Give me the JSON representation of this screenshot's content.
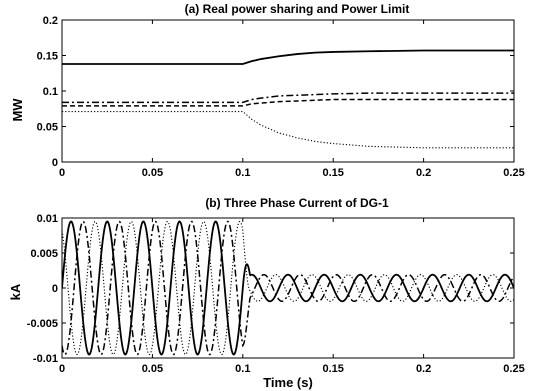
{
  "chart_data": [
    {
      "type": "line",
      "title": "(a) Real power sharing and Power Limit",
      "xlabel": "",
      "ylabel": "MW",
      "xlim": [
        0,
        0.25
      ],
      "ylim": [
        0,
        0.2
      ],
      "xticks": [
        0,
        0.05,
        0.1,
        0.15,
        0.2,
        0.25
      ],
      "xtick_labels": [
        "0",
        "0.05",
        "0.1",
        "0.15",
        "0.2",
        "0.25"
      ],
      "yticks": [
        0,
        0.05,
        0.1,
        0.15,
        0.2
      ],
      "ytick_labels": [
        "0",
        "0.05",
        "0.1",
        "0.15",
        "0.2"
      ],
      "grid": false,
      "series": [
        {
          "style": "solid",
          "x": [
            0,
            0.1,
            0.105,
            0.11,
            0.12,
            0.13,
            0.14,
            0.15,
            0.17,
            0.2,
            0.25
          ],
          "y": [
            0.138,
            0.138,
            0.142,
            0.145,
            0.149,
            0.152,
            0.154,
            0.155,
            0.156,
            0.157,
            0.157
          ]
        },
        {
          "style": "dashdot",
          "x": [
            0,
            0.1,
            0.105,
            0.11,
            0.12,
            0.13,
            0.14,
            0.15,
            0.17,
            0.2,
            0.25
          ],
          "y": [
            0.084,
            0.084,
            0.088,
            0.09,
            0.093,
            0.094,
            0.095,
            0.096,
            0.097,
            0.097,
            0.097
          ]
        },
        {
          "style": "dashed",
          "x": [
            0,
            0.1,
            0.105,
            0.11,
            0.12,
            0.13,
            0.14,
            0.15,
            0.17,
            0.2,
            0.25
          ],
          "y": [
            0.079,
            0.079,
            0.082,
            0.083,
            0.085,
            0.086,
            0.087,
            0.088,
            0.088,
            0.088,
            0.088
          ]
        },
        {
          "style": "dotted",
          "x": [
            0,
            0.1,
            0.105,
            0.11,
            0.12,
            0.13,
            0.14,
            0.15,
            0.17,
            0.2,
            0.25
          ],
          "y": [
            0.071,
            0.071,
            0.06,
            0.052,
            0.041,
            0.034,
            0.029,
            0.026,
            0.022,
            0.02,
            0.02
          ]
        }
      ]
    },
    {
      "type": "line",
      "title": "(b) Three Phase Current of DG-1",
      "xlabel": "Time (s)",
      "ylabel": "kA",
      "xlim": [
        0,
        0.25
      ],
      "ylim": [
        -0.01,
        0.01
      ],
      "xticks": [
        0,
        0.05,
        0.1,
        0.15,
        0.2,
        0.25
      ],
      "xtick_labels": [
        "0",
        "0.05",
        "0.1",
        "0.15",
        "0.2",
        "0.25"
      ],
      "yticks": [
        -0.01,
        -0.005,
        0,
        0.005,
        0.01
      ],
      "ytick_labels": [
        "-0.01",
        "-0.005",
        "0",
        "0.005",
        "0.01"
      ],
      "grid": false,
      "frequency_hz": 50,
      "switch_time": 0.1,
      "amplitude_before": 0.0095,
      "amplitude_after": 0.0019,
      "series": [
        {
          "style": "solid",
          "phase_deg": 0
        },
        {
          "style": "dashdot",
          "phase_deg": -120
        },
        {
          "style": "dotted",
          "phase_deg": 120
        }
      ]
    }
  ]
}
